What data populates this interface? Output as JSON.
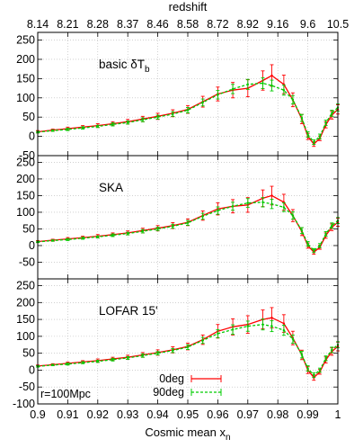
{
  "chart_data": {
    "type": "line",
    "top_axis": {
      "label": "redshift",
      "tick_labels": [
        "8.14",
        "8.21",
        "8.28",
        "8.37",
        "8.46",
        "8.58",
        "8.72",
        "8.92",
        "9.16",
        "9.6",
        "10.5"
      ],
      "tick_x": [
        0.9,
        0.91,
        0.92,
        0.93,
        0.94,
        0.95,
        0.96,
        0.97,
        0.98,
        0.99,
        1.0
      ]
    },
    "x_axis": {
      "label_main": "Cosmic mean x",
      "label_sub": "n",
      "ticks": [
        0.9,
        0.91,
        0.92,
        0.93,
        0.94,
        0.95,
        0.96,
        0.97,
        0.98,
        0.99,
        1.0
      ],
      "tick_labels": [
        "0.9",
        "0.91",
        "0.92",
        "0.93",
        "0.94",
        "0.95",
        "0.96",
        "0.97",
        "0.98",
        "0.99",
        "1"
      ],
      "range": [
        0.9,
        1.0
      ]
    },
    "grid": true,
    "legend": {
      "placement": "bottom-center of bottom panel",
      "entries": [
        {
          "name": "0deg",
          "color": "#ff0000"
        },
        {
          "name": "90deg",
          "color": "#00cc00"
        }
      ]
    },
    "annotation": "r=100Mpc",
    "panels": [
      {
        "label": "basic δT",
        "label_sub": "b",
        "ylim": [
          -50,
          270
        ],
        "yticks": [
          -50,
          0,
          50,
          100,
          150,
          200,
          250
        ],
        "ytick_labels": [
          "-50",
          "0",
          "50",
          "100",
          "150",
          "200",
          "250"
        ],
        "series": [
          {
            "name": "0deg",
            "color": "#ff0000",
            "x": [
              0.9,
              0.905,
              0.91,
              0.915,
              0.92,
              0.925,
              0.93,
              0.935,
              0.94,
              0.945,
              0.95,
              0.955,
              0.96,
              0.965,
              0.97,
              0.975,
              0.978,
              0.982,
              0.985,
              0.988,
              0.99,
              0.992,
              0.994,
              0.996,
              0.998,
              1.0
            ],
            "y": [
              12,
              16,
              20,
              24,
              28,
              33,
              38,
              45,
              52,
              60,
              70,
              90,
              110,
              120,
              125,
              145,
              158,
              135,
              95,
              45,
              0,
              -20,
              -5,
              30,
              55,
              70
            ],
            "err": [
              3,
              3,
              4,
              4,
              5,
              5,
              6,
              7,
              8,
              9,
              10,
              14,
              18,
              20,
              22,
              25,
              28,
              24,
              18,
              12,
              8,
              6,
              6,
              8,
              10,
              12
            ]
          },
          {
            "name": "90deg",
            "color": "#00cc00",
            "x": [
              0.9,
              0.905,
              0.91,
              0.915,
              0.92,
              0.925,
              0.93,
              0.935,
              0.94,
              0.945,
              0.95,
              0.955,
              0.96,
              0.965,
              0.97,
              0.975,
              0.978,
              0.982,
              0.985,
              0.988,
              0.99,
              0.992,
              0.994,
              0.996,
              0.998,
              1.0
            ],
            "y": [
              11,
              15,
              18,
              22,
              26,
              31,
              36,
              43,
              50,
              58,
              68,
              88,
              108,
              123,
              135,
              138,
              132,
              120,
              95,
              48,
              5,
              -15,
              0,
              35,
              60,
              75
            ],
            "err": [
              2,
              2,
              3,
              3,
              3,
              4,
              4,
              5,
              5,
              6,
              7,
              9,
              11,
              12,
              13,
              14,
              14,
              13,
              11,
              9,
              7,
              6,
              6,
              7,
              8,
              9
            ]
          }
        ]
      },
      {
        "label": "SKA",
        "label_sub": "",
        "ylim": [
          -100,
          270
        ],
        "yticks": [
          -50,
          0,
          50,
          100,
          150,
          200,
          250
        ],
        "ytick_labels": [
          "-50",
          "0",
          "50",
          "100",
          "150",
          "200",
          "250"
        ],
        "series": [
          {
            "name": "0deg",
            "color": "#ff0000",
            "x": [
              0.9,
              0.905,
              0.91,
              0.915,
              0.92,
              0.925,
              0.93,
              0.935,
              0.94,
              0.945,
              0.95,
              0.955,
              0.96,
              0.965,
              0.97,
              0.975,
              0.978,
              0.982,
              0.985,
              0.988,
              0.99,
              0.992,
              0.994,
              0.996,
              0.998,
              1.0
            ],
            "y": [
              12,
              16,
              20,
              24,
              28,
              33,
              38,
              45,
              52,
              60,
              70,
              90,
              110,
              118,
              122,
              142,
              150,
              130,
              90,
              42,
              0,
              -20,
              -5,
              30,
              55,
              70
            ],
            "err": [
              3,
              3,
              4,
              4,
              5,
              5,
              6,
              7,
              8,
              9,
              10,
              14,
              18,
              20,
              22,
              25,
              28,
              24,
              18,
              12,
              8,
              6,
              6,
              8,
              10,
              12
            ]
          },
          {
            "name": "90deg",
            "color": "#00cc00",
            "x": [
              0.9,
              0.905,
              0.91,
              0.915,
              0.92,
              0.925,
              0.93,
              0.935,
              0.94,
              0.945,
              0.95,
              0.955,
              0.96,
              0.965,
              0.97,
              0.975,
              0.978,
              0.982,
              0.985,
              0.988,
              0.99,
              0.992,
              0.994,
              0.996,
              0.998,
              1.0
            ],
            "y": [
              11,
              15,
              18,
              22,
              26,
              31,
              36,
              43,
              50,
              58,
              68,
              88,
              105,
              118,
              128,
              130,
              125,
              115,
              90,
              45,
              5,
              -15,
              0,
              35,
              60,
              75
            ],
            "err": [
              2,
              2,
              3,
              3,
              3,
              4,
              4,
              5,
              5,
              6,
              7,
              9,
              11,
              12,
              13,
              14,
              14,
              13,
              11,
              9,
              7,
              6,
              6,
              7,
              8,
              9
            ]
          }
        ]
      },
      {
        "label": "LOFAR 15'",
        "label_sub": "",
        "ylim": [
          -100,
          270
        ],
        "yticks": [
          -100,
          -50,
          0,
          50,
          100,
          150,
          200,
          250
        ],
        "ytick_labels": [
          "-100",
          "-50",
          "0",
          "50",
          "100",
          "150",
          "200",
          "250"
        ],
        "series": [
          {
            "name": "0deg",
            "color": "#ff0000",
            "x": [
              0.9,
              0.905,
              0.91,
              0.915,
              0.92,
              0.925,
              0.93,
              0.935,
              0.94,
              0.945,
              0.95,
              0.955,
              0.96,
              0.965,
              0.97,
              0.975,
              0.978,
              0.982,
              0.985,
              0.988,
              0.99,
              0.992,
              0.994,
              0.996,
              0.998,
              1.0
            ],
            "y": [
              12,
              16,
              20,
              24,
              28,
              33,
              38,
              45,
              52,
              60,
              70,
              90,
              115,
              128,
              135,
              150,
              155,
              138,
              95,
              45,
              0,
              -22,
              -5,
              30,
              55,
              70
            ],
            "err": [
              3,
              3,
              4,
              4,
              5,
              5,
              6,
              7,
              8,
              9,
              10,
              14,
              20,
              24,
              26,
              28,
              30,
              26,
              20,
              14,
              10,
              8,
              7,
              9,
              11,
              13
            ]
          },
          {
            "name": "90deg",
            "color": "#00cc00",
            "x": [
              0.9,
              0.905,
              0.91,
              0.915,
              0.92,
              0.925,
              0.93,
              0.935,
              0.94,
              0.945,
              0.95,
              0.955,
              0.96,
              0.965,
              0.97,
              0.975,
              0.978,
              0.982,
              0.985,
              0.988,
              0.99,
              0.992,
              0.994,
              0.996,
              0.998,
              1.0
            ],
            "y": [
              11,
              15,
              18,
              22,
              26,
              31,
              36,
              43,
              50,
              58,
              68,
              88,
              108,
              120,
              130,
              135,
              130,
              118,
              92,
              46,
              5,
              -15,
              0,
              35,
              60,
              75
            ],
            "err": [
              2,
              2,
              3,
              3,
              3,
              4,
              4,
              5,
              5,
              6,
              7,
              9,
              12,
              14,
              15,
              16,
              16,
              15,
              12,
              10,
              8,
              7,
              6,
              7,
              8,
              9
            ]
          }
        ]
      }
    ]
  }
}
